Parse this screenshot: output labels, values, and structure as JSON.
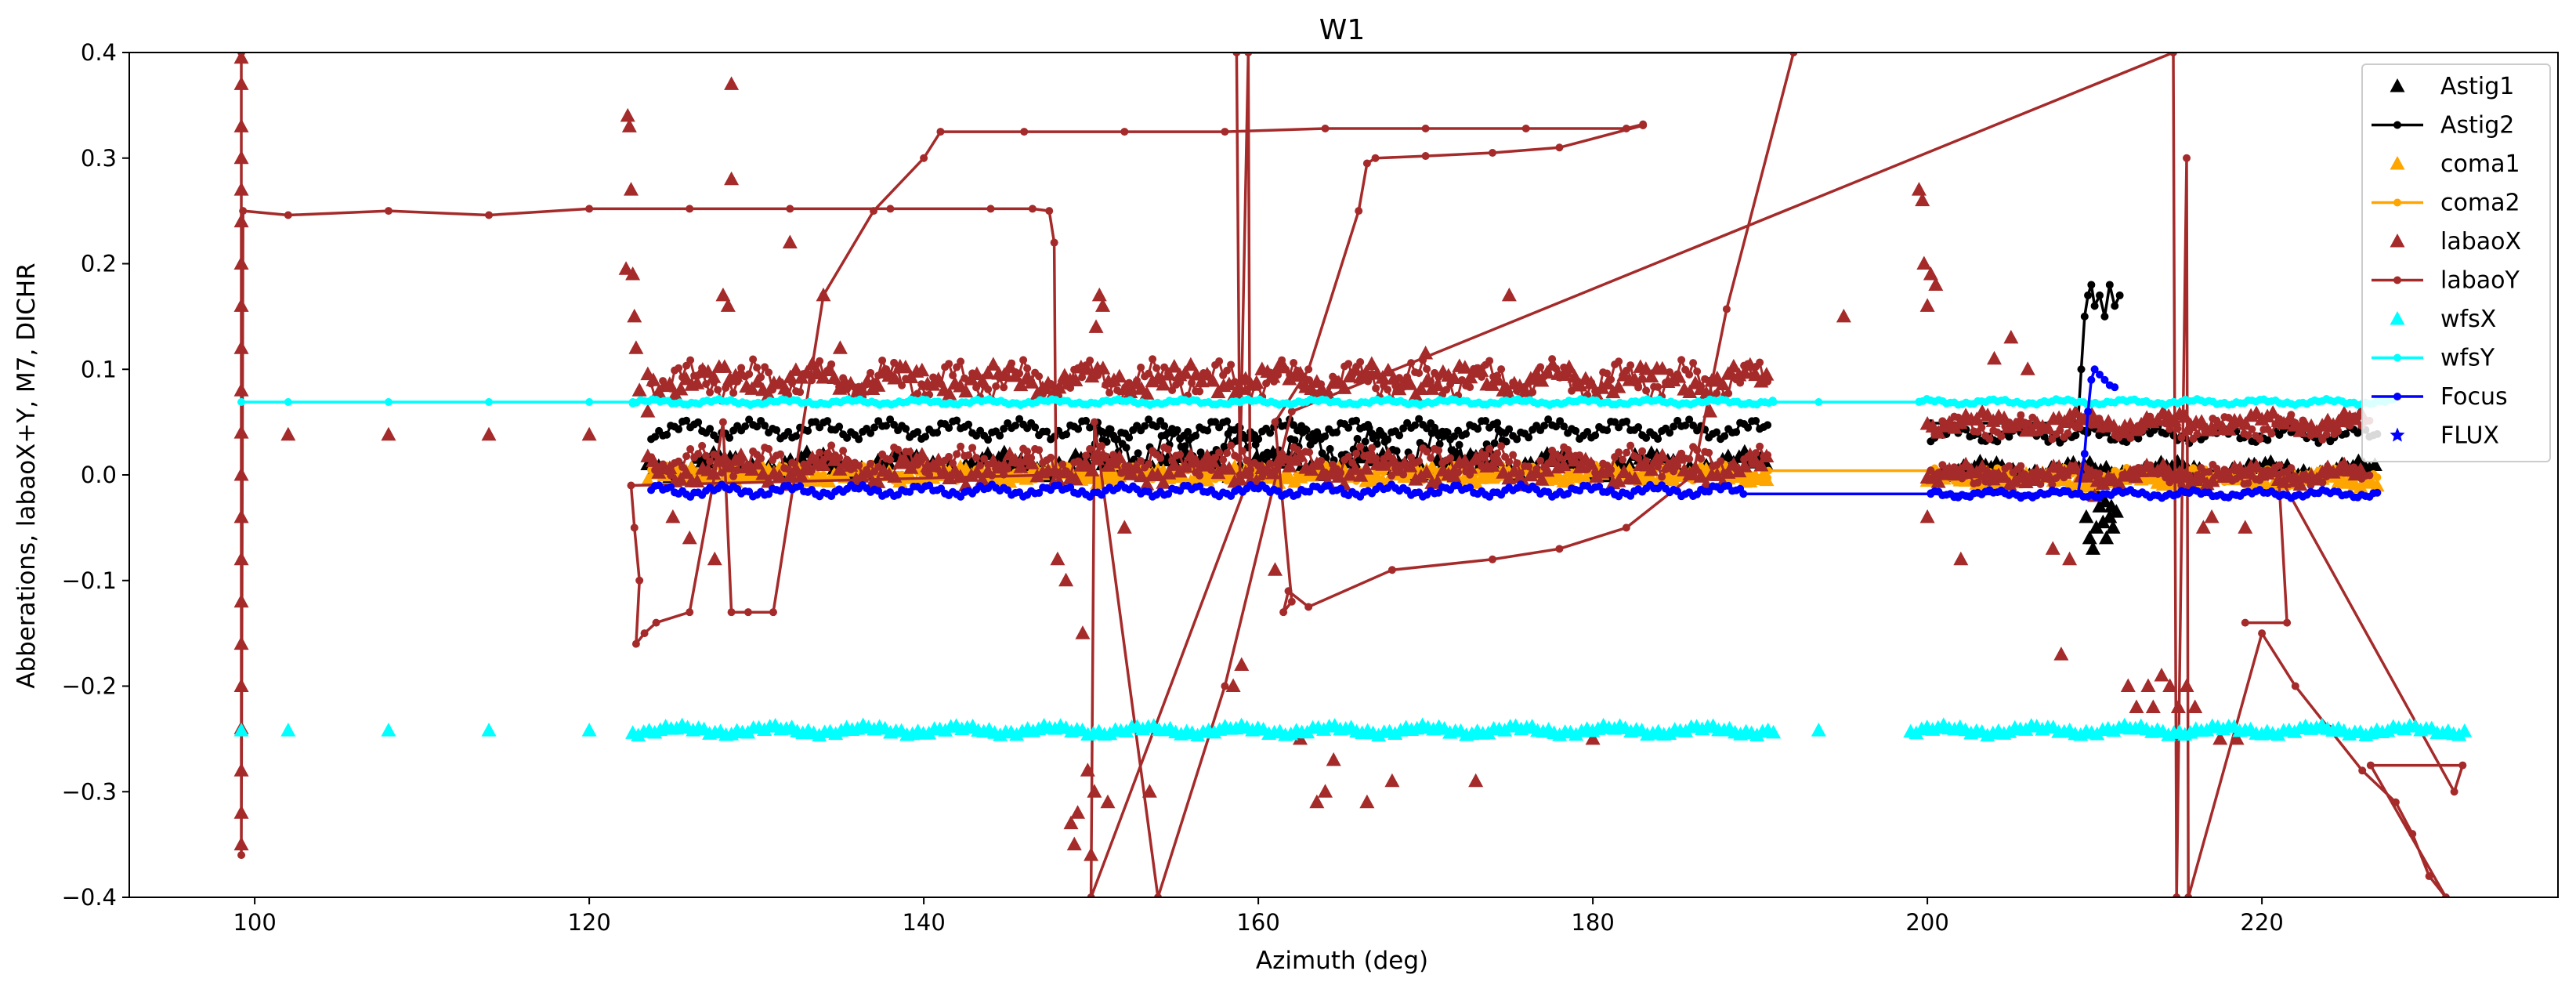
{
  "chart_data": {
    "type": "scatter",
    "title": "W1",
    "xlabel": "Azimuth (deg)",
    "ylabel": "Abberations, labaoX+Y, M7, DICHR",
    "xlim": [
      92.5,
      237.7
    ],
    "ylim": [
      -0.4,
      0.4
    ],
    "xticks": [
      100,
      120,
      140,
      160,
      180,
      200,
      220
    ],
    "xtick_labels": [
      "100",
      "120",
      "140",
      "160",
      "180",
      "200",
      "220"
    ],
    "yticks": [
      -0.4,
      -0.3,
      -0.2,
      -0.1,
      0.0,
      0.1,
      0.2,
      0.3,
      0.4
    ],
    "ytick_labels": [
      "−0.4",
      "−0.3",
      "−0.2",
      "−0.1",
      "0.0",
      "0.1",
      "0.2",
      "0.3",
      "0.4"
    ],
    "grid": false,
    "legend_position": "top-right",
    "series": [
      {
        "name": "Astig1",
        "marker": "triangle",
        "line": false,
        "color": "#000000",
        "bands": [
          [
            123.5,
            190.5,
            0.01,
            0.012
          ],
          [
            200.2,
            227,
            0.005,
            0.008
          ]
        ],
        "points": [
          [
            209.5,
            -0.04
          ],
          [
            209.7,
            -0.06
          ],
          [
            209.9,
            -0.07
          ],
          [
            210.1,
            -0.05
          ],
          [
            210.3,
            -0.03
          ],
          [
            210.5,
            -0.045
          ],
          [
            210.7,
            -0.06
          ],
          [
            210.9,
            -0.04
          ],
          [
            211.1,
            -0.05
          ],
          [
            211.3,
            -0.035
          ],
          [
            210.2,
            -0.02
          ],
          [
            210.6,
            -0.025
          ],
          [
            211.0,
            -0.03
          ]
        ]
      },
      {
        "name": "Astig2",
        "marker": "dot",
        "line": true,
        "color": "#000000",
        "bands": [
          [
            123.7,
            190.5,
            0.043,
            0.01
          ],
          [
            200.2,
            227,
            0.038,
            0.008
          ],
          [
            150,
            175,
            0.025,
            0.02
          ]
        ],
        "points": [
          [
            200.2,
            0.049
          ],
          [
            209.0,
            0.049
          ],
          [
            209.2,
            0.1
          ],
          [
            209.4,
            0.15
          ],
          [
            209.6,
            0.17
          ],
          [
            209.8,
            0.18
          ],
          [
            210.0,
            0.16
          ],
          [
            210.3,
            0.17
          ],
          [
            210.6,
            0.15
          ],
          [
            210.9,
            0.18
          ],
          [
            211.2,
            0.16
          ],
          [
            211.5,
            0.17
          ]
        ]
      },
      {
        "name": "coma1",
        "marker": "triangle",
        "line": false,
        "color": "#ffa500",
        "bands": [
          [
            123.5,
            190.5,
            0.0,
            0.008
          ],
          [
            200,
            227,
            -0.005,
            0.007
          ]
        ],
        "points": []
      },
      {
        "name": "coma2",
        "marker": "dot",
        "line": true,
        "color": "#ffa500",
        "bands": [
          [
            123.7,
            190.5,
            0.002,
            0.008
          ],
          [
            200.2,
            227,
            0.0,
            0.007
          ]
        ],
        "points": [
          [
            190.5,
            0.004
          ],
          [
            200.2,
            0.004
          ]
        ]
      },
      {
        "name": "labaoX",
        "marker": "triangle",
        "line": false,
        "color": "#a52a2a",
        "bands": [
          [
            123.5,
            190.5,
            0.005,
            0.015
          ],
          [
            123.5,
            190.5,
            0.09,
            0.015
          ],
          [
            200,
            226,
            0.05,
            0.01
          ],
          [
            200,
            226,
            0.0,
            0.01
          ]
        ],
        "points": [
          [
            99.2,
            0.395
          ],
          [
            99.2,
            0.37
          ],
          [
            99.2,
            0.33
          ],
          [
            99.2,
            0.3
          ],
          [
            99.2,
            0.27
          ],
          [
            99.2,
            0.24
          ],
          [
            99.2,
            0.2
          ],
          [
            99.2,
            0.16
          ],
          [
            99.2,
            0.12
          ],
          [
            99.2,
            0.08
          ],
          [
            99.2,
            0.04
          ],
          [
            99.2,
            0.0
          ],
          [
            99.2,
            -0.04
          ],
          [
            99.2,
            -0.08
          ],
          [
            99.2,
            -0.12
          ],
          [
            99.2,
            -0.16
          ],
          [
            99.2,
            -0.2
          ],
          [
            99.2,
            -0.24
          ],
          [
            99.2,
            -0.28
          ],
          [
            99.2,
            -0.32
          ],
          [
            99.2,
            -0.35
          ],
          [
            102,
            0.038
          ],
          [
            108,
            0.038
          ],
          [
            114,
            0.038
          ],
          [
            120,
            0.038
          ],
          [
            122.3,
            0.34
          ],
          [
            122.4,
            0.33
          ],
          [
            122.5,
            0.27
          ],
          [
            122.2,
            0.195
          ],
          [
            122.6,
            0.19
          ],
          [
            122.7,
            0.15
          ],
          [
            122.8,
            0.12
          ],
          [
            123,
            0.08
          ],
          [
            123.5,
            0.06
          ],
          [
            125,
            -0.04
          ],
          [
            126,
            -0.06
          ],
          [
            127.5,
            -0.08
          ],
          [
            128,
            0.17
          ],
          [
            128.3,
            0.16
          ],
          [
            128.5,
            0.28
          ],
          [
            128.5,
            0.37
          ],
          [
            132,
            0.22
          ],
          [
            134,
            0.17
          ],
          [
            135,
            0.12
          ],
          [
            148,
            -0.08
          ],
          [
            148.5,
            -0.1
          ],
          [
            148.8,
            -0.33
          ],
          [
            149,
            -0.35
          ],
          [
            149.2,
            -0.32
          ],
          [
            149.5,
            -0.15
          ],
          [
            149.8,
            -0.28
          ],
          [
            150,
            -0.36
          ],
          [
            150.2,
            -0.3
          ],
          [
            150.5,
            0.17
          ],
          [
            150.7,
            0.16
          ],
          [
            150.3,
            0.14
          ],
          [
            151,
            -0.31
          ],
          [
            152,
            -0.05
          ],
          [
            153.5,
            -0.3
          ],
          [
            158.5,
            -0.2
          ],
          [
            159,
            -0.18
          ],
          [
            161,
            -0.09
          ],
          [
            162.5,
            -0.25
          ],
          [
            163.5,
            -0.31
          ],
          [
            164,
            -0.3
          ],
          [
            164.5,
            -0.27
          ],
          [
            166.5,
            -0.31
          ],
          [
            168,
            -0.29
          ],
          [
            170,
            0.115
          ],
          [
            173,
            -0.29
          ],
          [
            175,
            0.17
          ],
          [
            180,
            -0.25
          ],
          [
            187,
            0.06
          ],
          [
            195,
            0.15
          ],
          [
            199.5,
            0.27
          ],
          [
            199.7,
            0.26
          ],
          [
            199.8,
            0.2
          ],
          [
            200,
            0.16
          ],
          [
            200.2,
            0.19
          ],
          [
            200,
            -0.04
          ],
          [
            200.5,
            0.18
          ],
          [
            202,
            -0.08
          ],
          [
            204,
            0.11
          ],
          [
            205,
            0.13
          ],
          [
            206,
            0.1
          ],
          [
            207.5,
            -0.07
          ],
          [
            208,
            -0.17
          ],
          [
            208.5,
            -0.08
          ],
          [
            210,
            -0.02
          ],
          [
            212,
            -0.2
          ],
          [
            212.5,
            -0.22
          ],
          [
            213.2,
            -0.2
          ],
          [
            213.5,
            -0.22
          ],
          [
            214,
            -0.19
          ],
          [
            214.5,
            -0.2
          ],
          [
            215,
            -0.22
          ],
          [
            215.5,
            -0.2
          ],
          [
            216,
            -0.22
          ],
          [
            216.5,
            -0.05
          ],
          [
            217,
            -0.04
          ],
          [
            217.5,
            -0.25
          ],
          [
            219,
            -0.05
          ],
          [
            218.5,
            -0.25
          ]
        ]
      },
      {
        "name": "labaoY",
        "marker": "dot",
        "line": true,
        "color": "#a52a2a",
        "bands": [
          [
            123.7,
            190.5,
            0.013,
            0.015
          ],
          [
            123.7,
            190.5,
            0.09,
            0.02
          ],
          [
            200.2,
            226.5,
            0.045,
            0.012
          ],
          [
            200.2,
            226.5,
            0.0,
            0.01
          ]
        ],
        "points": [
          [
            99.2,
            0.4
          ],
          [
            99.2,
            -0.36
          ],
          [
            99.3,
            0.25
          ],
          [
            102,
            0.246
          ],
          [
            108,
            0.25
          ],
          [
            114,
            0.246
          ],
          [
            120,
            0.252
          ],
          [
            126,
            0.252
          ],
          [
            132,
            0.252
          ],
          [
            138,
            0.252
          ],
          [
            144,
            0.252
          ],
          [
            146.5,
            0.252
          ],
          [
            147.5,
            0.25
          ],
          [
            147.8,
            0.22
          ],
          [
            147.9,
            0.0
          ],
          [
            122.5,
            -0.01
          ],
          [
            122.7,
            -0.05
          ],
          [
            123,
            -0.1
          ],
          [
            122.8,
            -0.16
          ],
          [
            123.3,
            -0.15
          ],
          [
            124,
            -0.14
          ],
          [
            126,
            -0.13
          ],
          [
            127.5,
            0.0
          ],
          [
            128,
            0.05
          ],
          [
            128.5,
            -0.13
          ],
          [
            129.5,
            -0.13
          ],
          [
            131,
            -0.13
          ],
          [
            134,
            0.17
          ],
          [
            137,
            0.25
          ],
          [
            140,
            0.3
          ],
          [
            141,
            0.325
          ],
          [
            146,
            0.325
          ],
          [
            152,
            0.325
          ],
          [
            158,
            0.325
          ],
          [
            164,
            0.328
          ],
          [
            170,
            0.328
          ],
          [
            176,
            0.328
          ],
          [
            182,
            0.328
          ],
          [
            183,
            0.332
          ],
          [
            183,
            0.331
          ],
          [
            178,
            0.31
          ],
          [
            174,
            0.305
          ],
          [
            170,
            0.302
          ],
          [
            167,
            0.3
          ],
          [
            166.5,
            0.295
          ],
          [
            166,
            0.25
          ],
          [
            163,
            0.1
          ],
          [
            161,
            0.05
          ],
          [
            162,
            -0.12
          ],
          [
            161.5,
            -0.13
          ],
          [
            161.8,
            -0.11
          ],
          [
            163,
            -0.125
          ],
          [
            168,
            -0.09
          ],
          [
            174,
            -0.08
          ],
          [
            178,
            -0.07
          ],
          [
            182,
            -0.05
          ],
          [
            186,
            0.0
          ],
          [
            188,
            0.157
          ],
          [
            192,
            0.4
          ],
          [
            158.7,
            0.4
          ],
          [
            158.9,
            0.0
          ],
          [
            159.4,
            0.4
          ],
          [
            159.5,
            0.0
          ],
          [
            150,
            -0.4
          ],
          [
            150.2,
            0.05
          ],
          [
            154,
            -0.4
          ],
          [
            158,
            -0.2
          ],
          [
            162,
            0.06
          ],
          [
            214.7,
            0.4
          ],
          [
            214.9,
            -0.4
          ],
          [
            215.5,
            0.3
          ],
          [
            215.6,
            -0.4
          ],
          [
            220,
            -0.15
          ],
          [
            222,
            -0.2
          ],
          [
            224,
            -0.24
          ],
          [
            226,
            -0.28
          ],
          [
            228,
            -0.31
          ],
          [
            229,
            -0.34
          ],
          [
            230,
            -0.38
          ],
          [
            231,
            -0.4
          ],
          [
            226.5,
            -0.275
          ],
          [
            232,
            -0.275
          ],
          [
            231.5,
            -0.3
          ],
          [
            221,
            0.0
          ],
          [
            221.5,
            -0.14
          ],
          [
            219,
            -0.14
          ]
        ]
      },
      {
        "name": "wfsX",
        "marker": "triangle",
        "line": false,
        "color": "#00ffff",
        "bands": [
          [
            122.6,
            190.8,
            -0.242,
            0.005
          ],
          [
            199,
            232.2,
            -0.242,
            0.005
          ]
        ],
        "points": [
          [
            99.2,
            -0.242
          ],
          [
            102,
            -0.242
          ],
          [
            108,
            -0.242
          ],
          [
            114,
            -0.242
          ],
          [
            120,
            -0.242
          ],
          [
            193.5,
            -0.242
          ]
        ]
      },
      {
        "name": "wfsY",
        "marker": "dot",
        "line": true,
        "color": "#00ffff",
        "bands": [
          [
            122.6,
            190.8,
            0.069,
            0.003
          ],
          [
            199.5,
            228,
            0.069,
            0.003
          ]
        ],
        "points": [
          [
            99.2,
            0.069
          ],
          [
            102,
            0.069
          ],
          [
            108,
            0.069
          ],
          [
            114,
            0.069
          ],
          [
            120,
            0.069
          ],
          [
            122.6,
            0.069
          ],
          [
            190.8,
            0.069
          ],
          [
            193.5,
            0.069
          ],
          [
            199.5,
            0.069
          ]
        ]
      },
      {
        "name": "Focus",
        "marker": "dot",
        "line": true,
        "color": "#0000ff",
        "bands": [
          [
            123.7,
            189,
            -0.015,
            0.006
          ],
          [
            200.2,
            227,
            -0.018,
            0.004
          ]
        ],
        "points": [
          [
            189,
            -0.018
          ],
          [
            200.2,
            -0.018
          ],
          [
            209,
            -0.018
          ],
          [
            209.4,
            0.02
          ],
          [
            209.6,
            0.06
          ],
          [
            209.8,
            0.09
          ],
          [
            210.0,
            0.1
          ],
          [
            210.3,
            0.095
          ],
          [
            210.6,
            0.09
          ],
          [
            210.9,
            0.085
          ],
          [
            211.2,
            0.083
          ]
        ]
      },
      {
        "name": "FLUX",
        "marker": "star",
        "line": false,
        "color": "#0000ff",
        "bands": [],
        "points": []
      }
    ]
  }
}
